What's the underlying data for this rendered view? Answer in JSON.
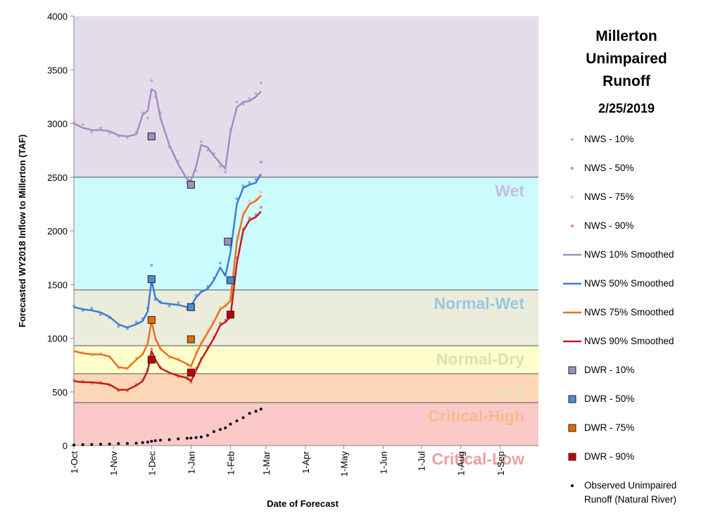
{
  "chart_data": {
    "type": "line",
    "title": "Millerton Unimpaired Runoff",
    "subtitle": "2/25/2019",
    "y_label": "Forecasted WY2018 Inflow to Millerton (TAF)",
    "x_label": "Date of Forecast",
    "xlim": [
      0,
      365
    ],
    "xticks": [
      {
        "value": 0,
        "label": "1-Oct"
      },
      {
        "value": 31,
        "label": "1-Nov"
      },
      {
        "value": 61,
        "label": "1-Dec"
      },
      {
        "value": 92,
        "label": "1-Jan"
      },
      {
        "value": 123,
        "label": "1-Feb"
      },
      {
        "value": 151,
        "label": "1-Mar"
      },
      {
        "value": 182,
        "label": "1-Apr"
      },
      {
        "value": 212,
        "label": "1-May"
      },
      {
        "value": 243,
        "label": "1-Jun"
      },
      {
        "value": 273,
        "label": "1-Jul"
      },
      {
        "value": 304,
        "label": "1-Aug"
      },
      {
        "value": 335,
        "label": "1-Sep"
      }
    ],
    "ylim": [
      0,
      4000
    ],
    "yticks": [
      0,
      500,
      1000,
      1500,
      2000,
      2500,
      3000,
      3500,
      4000
    ],
    "zones": [
      {
        "name": "Critical-Low",
        "from": 0,
        "to": 400,
        "color": "#fcc9c9",
        "label_color": "#e9a0a0"
      },
      {
        "name": "Critical-High",
        "from": 400,
        "to": 670,
        "color": "#fcd6b6",
        "label_color": "#f7bb8a"
      },
      {
        "name": "Dry",
        "from": 670,
        "to": 930,
        "color": "#ffffcc",
        "label_color": "#e8e0b8"
      },
      {
        "name": "Normal-Dry",
        "from": 930,
        "to": 1450,
        "color": "#ebecdc",
        "label_color": "#d6e2b8"
      },
      {
        "name": "Normal-Wet",
        "from": 1450,
        "to": 2500,
        "color": "#ccfbfd",
        "label_color": "#9ac8e0"
      },
      {
        "name": "Wet",
        "from": 2500,
        "to": 4000,
        "color": "#e5dcea",
        "label_color": "#c9bcdc"
      }
    ],
    "x": [
      0,
      7,
      14,
      21,
      28,
      35,
      42,
      49,
      54,
      58,
      61,
      64,
      68,
      75,
      82,
      89,
      92,
      96,
      100,
      105,
      110,
      115,
      119,
      123,
      128,
      133,
      138,
      143,
      147
    ],
    "series": [
      {
        "name": "NWS - 10%",
        "style": "scatter",
        "color": "#bcb0cf",
        "values": [
          3010,
          2990,
          2920,
          2960,
          2910,
          2880,
          2870,
          2920,
          3100,
          3050,
          3400,
          3250,
          3100,
          2780,
          2650,
          2450,
          2440,
          2560,
          2830,
          2750,
          2720,
          2600,
          2550,
          2950,
          3200,
          3180,
          3230,
          3280,
          3380
        ]
      },
      {
        "name": "NWS - 50%",
        "style": "scatter",
        "color": "#7aaae2",
        "values": [
          1300,
          1260,
          1280,
          1220,
          1190,
          1110,
          1090,
          1150,
          1180,
          1280,
          1680,
          1360,
          1340,
          1300,
          1330,
          1270,
          1310,
          1400,
          1440,
          1480,
          1560,
          1700,
          1600,
          1850,
          2300,
          2420,
          2450,
          2480,
          2640
        ]
      },
      {
        "name": "NWS - 75%",
        "style": "scatter",
        "color": "#f8c9a0",
        "values": [
          890,
          870,
          840,
          860,
          820,
          720,
          710,
          820,
          860,
          970,
          1180,
          980,
          910,
          820,
          810,
          750,
          730,
          870,
          960,
          1070,
          1160,
          1290,
          1320,
          1380,
          1950,
          2180,
          2280,
          2300,
          2360
        ]
      },
      {
        "name": "NWS - 90%",
        "style": "scatter",
        "color": "#e48080",
        "values": [
          610,
          600,
          580,
          590,
          560,
          510,
          510,
          570,
          610,
          710,
          900,
          790,
          730,
          670,
          640,
          620,
          590,
          720,
          810,
          920,
          1010,
          1140,
          1170,
          1220,
          1750,
          2020,
          2120,
          2150,
          2220
        ]
      },
      {
        "name": "NWS 10% Smoothed",
        "style": "line",
        "color": "#a48cc2",
        "values": [
          3000,
          2960,
          2940,
          2940,
          2930,
          2890,
          2880,
          2900,
          3080,
          3120,
          3320,
          3300,
          3050,
          2800,
          2620,
          2480,
          2470,
          2600,
          2800,
          2780,
          2700,
          2630,
          2580,
          2920,
          3150,
          3200,
          3210,
          3250,
          3300
        ]
      },
      {
        "name": "NWS 50% Smoothed",
        "style": "line",
        "color": "#3c7dd5",
        "values": [
          1290,
          1270,
          1260,
          1240,
          1200,
          1130,
          1100,
          1130,
          1160,
          1250,
          1540,
          1380,
          1330,
          1320,
          1310,
          1290,
          1300,
          1380,
          1430,
          1460,
          1540,
          1660,
          1580,
          1800,
          2250,
          2400,
          2430,
          2450,
          2530
        ]
      },
      {
        "name": "NWS 75% Smoothed",
        "style": "line",
        "color": "#e8701c",
        "values": [
          880,
          860,
          850,
          850,
          830,
          730,
          720,
          800,
          850,
          950,
          1160,
          1000,
          900,
          830,
          800,
          760,
          740,
          850,
          950,
          1050,
          1150,
          1270,
          1300,
          1350,
          1900,
          2150,
          2250,
          2280,
          2330
        ]
      },
      {
        "name": "NWS 90% Smoothed",
        "style": "line",
        "color": "#c01c1c",
        "values": [
          600,
          590,
          590,
          580,
          570,
          520,
          520,
          560,
          600,
          700,
          880,
          800,
          720,
          680,
          650,
          630,
          600,
          700,
          800,
          900,
          1000,
          1120,
          1150,
          1200,
          1700,
          2000,
          2100,
          2130,
          2180
        ]
      },
      {
        "name": "DWR - 10%",
        "style": "square",
        "color": "#9e8fc6",
        "x": [
          61,
          92,
          121
        ],
        "values": [
          2880,
          2430,
          1900
        ]
      },
      {
        "name": "DWR - 50%",
        "style": "square",
        "color": "#4f8bd0",
        "x": [
          61,
          92,
          123
        ],
        "values": [
          1550,
          1290,
          1540
        ]
      },
      {
        "name": "DWR - 75%",
        "style": "square",
        "color": "#e36c0a",
        "x": [
          61,
          92,
          123
        ],
        "values": [
          1170,
          990,
          null
        ]
      },
      {
        "name": "DWR - 90%",
        "style": "square",
        "color": "#c00000",
        "x": [
          61,
          92,
          123
        ],
        "values": [
          800,
          680,
          1220
        ]
      },
      {
        "name": "Observed Unimpaired Runoff (Natural River)",
        "style": "dot",
        "color": "#000000",
        "values": [
          5,
          8,
          10,
          12,
          15,
          18,
          20,
          22,
          28,
          32,
          40,
          45,
          50,
          55,
          62,
          68,
          70,
          75,
          80,
          95,
          130,
          150,
          165,
          200,
          230,
          260,
          300,
          320,
          340
        ]
      }
    ]
  }
}
